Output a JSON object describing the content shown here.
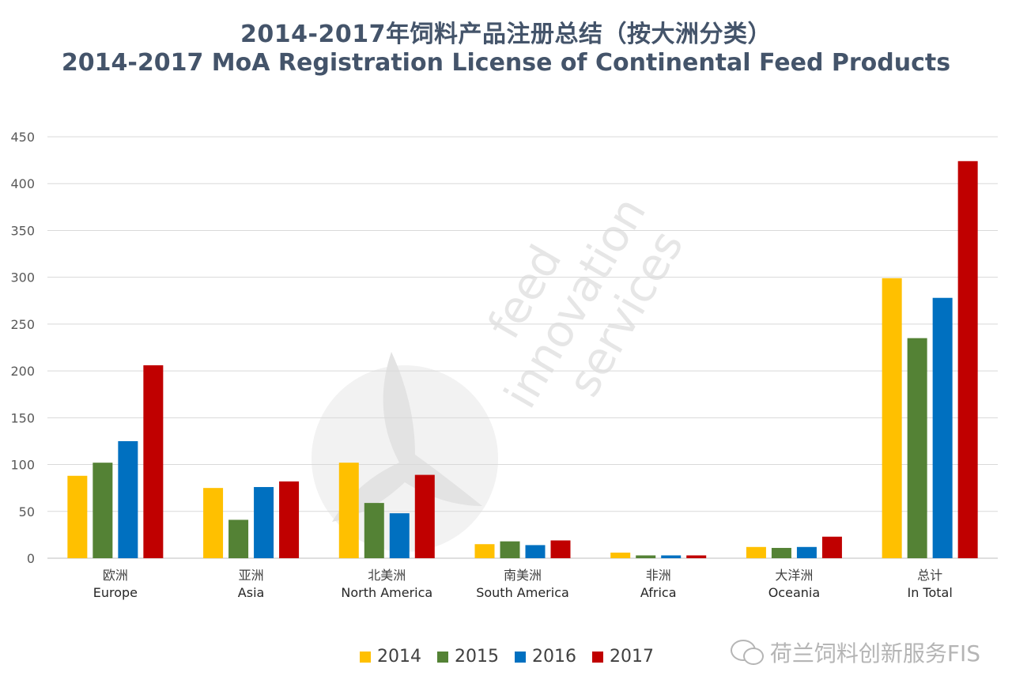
{
  "header": {
    "title_cn": "2014-2017年饲料产品注册总结（按大洲分类）",
    "title_en": "2014-2017 MoA Registration License of Continental Feed Products"
  },
  "watermark": {
    "brand_text": "荷兰饲料创新服务FIS",
    "icon": "wechat-icon",
    "logo_lines": [
      "feed",
      "innovation",
      "services"
    ]
  },
  "colors": {
    "2014": "#FFC000",
    "2015": "#548235",
    "2016": "#0070C0",
    "2017": "#C00000",
    "grid": "#D9D9D9",
    "axis_text": "#595959"
  },
  "chart_data": {
    "type": "bar",
    "categories": [
      {
        "cn": "欧洲",
        "en": "Europe"
      },
      {
        "cn": "亚洲",
        "en": "Asia"
      },
      {
        "cn": "北美洲",
        "en": "North America"
      },
      {
        "cn": "南美洲",
        "en": "South America"
      },
      {
        "cn": "非洲",
        "en": "Africa"
      },
      {
        "cn": "大洋洲",
        "en": "Oceania"
      },
      {
        "cn": "总计",
        "en": "In Total"
      }
    ],
    "series": [
      {
        "name": "2014",
        "values": [
          88,
          75,
          102,
          15,
          6,
          12,
          299
        ]
      },
      {
        "name": "2015",
        "values": [
          102,
          41,
          59,
          18,
          3,
          11,
          235
        ]
      },
      {
        "name": "2016",
        "values": [
          125,
          76,
          48,
          14,
          3,
          12,
          278
        ]
      },
      {
        "name": "2017",
        "values": [
          206,
          82,
          89,
          19,
          3,
          23,
          424
        ]
      }
    ],
    "ylim": [
      0,
      450
    ],
    "yticks": [
      "0",
      "50",
      "100",
      "150",
      "200",
      "250",
      "300",
      "350",
      "400",
      "450"
    ],
    "grid": true,
    "legend_position": "bottom"
  }
}
